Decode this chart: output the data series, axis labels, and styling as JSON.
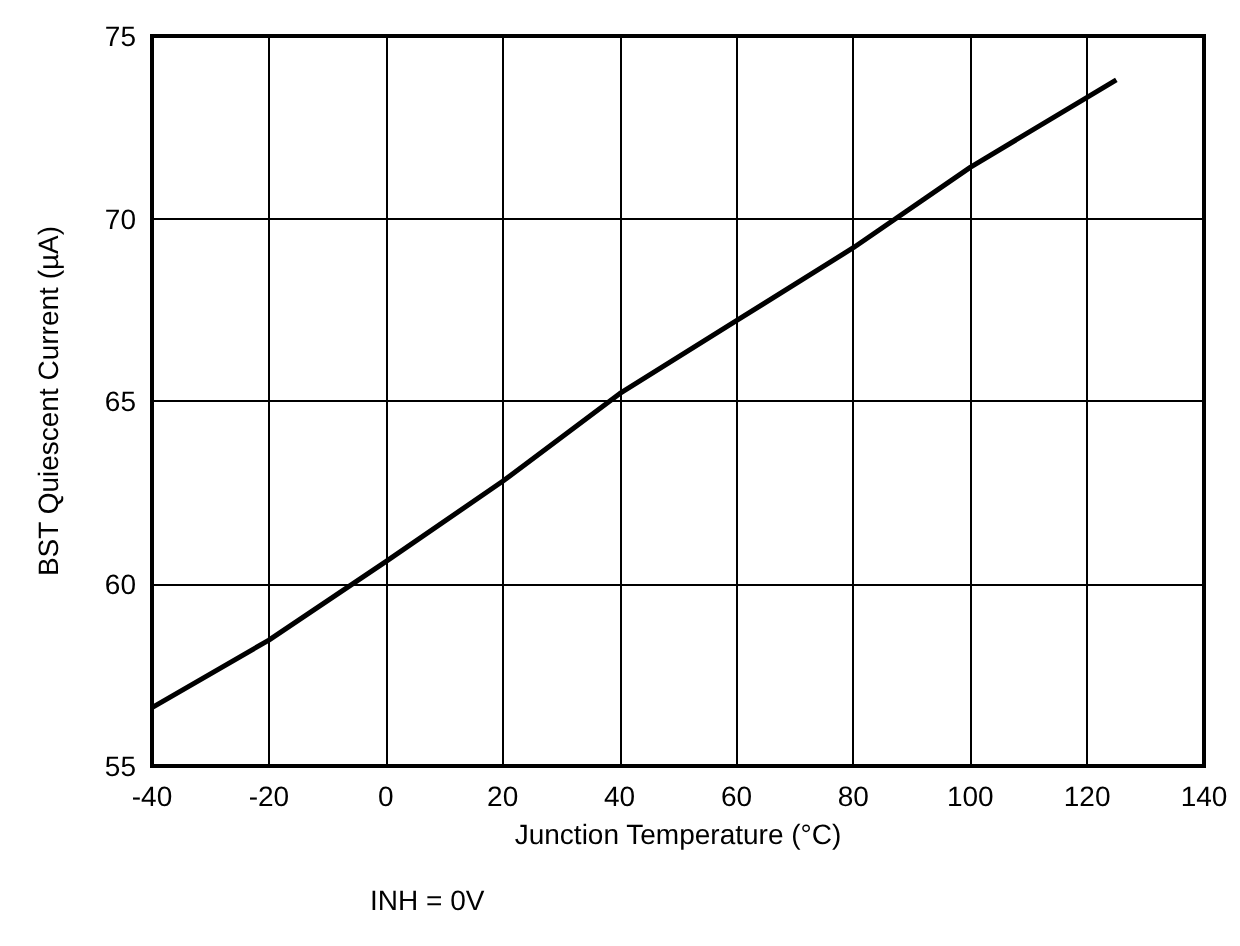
{
  "chart_data": {
    "type": "line",
    "xlabel": "Junction Temperature (°C)",
    "ylabel": "BST Quiescent Current (µA)",
    "annotations": [
      "INH = 0V"
    ],
    "x": [
      -40,
      -20,
      0,
      20,
      40,
      60,
      80,
      100,
      125
    ],
    "series": [
      {
        "color": "#000000",
        "values": [
          56.6,
          58.45,
          60.6,
          62.8,
          65.2,
          67.2,
          69.2,
          71.4,
          73.8
        ]
      }
    ],
    "xlim": [
      -40,
      140
    ],
    "xticks": [
      -40,
      -20,
      0,
      20,
      40,
      60,
      80,
      100,
      120,
      140
    ],
    "ylim": [
      55,
      75
    ],
    "yticks": [
      55,
      60,
      65,
      70,
      75
    ],
    "grid": true,
    "marker": "none",
    "line_style": "solid"
  }
}
